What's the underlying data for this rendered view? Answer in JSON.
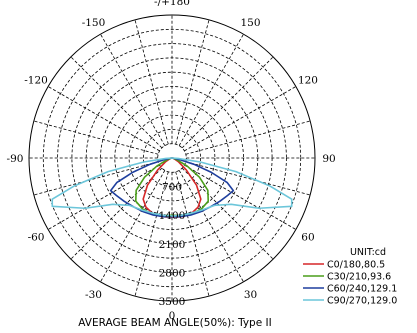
{
  "chart_data": {
    "type": "polar",
    "angle_labels": [
      "0",
      "30",
      "60",
      "90",
      "120",
      "150",
      "-/+180",
      "-150",
      "-120",
      "-90",
      "-60",
      "-30"
    ],
    "angle_values": [
      0,
      30,
      60,
      90,
      120,
      150,
      180,
      -150,
      -120,
      -90,
      -60,
      -30
    ],
    "radial_ticks": [
      700,
      1400,
      2100,
      2800,
      3500
    ],
    "radial_tick_labels": [
      "700",
      "1400",
      "2100",
      "2800",
      "3500"
    ],
    "rmax": 3500,
    "unit": "UNIT:cd",
    "caption": "AVERAGE BEAM ANGLE(50%): Type II",
    "legend_position": "bottom-right",
    "series": [
      {
        "name": "C0/180,80.5",
        "color": "#d62728",
        "points": [
          [
            -90,
            0
          ],
          [
            -80,
            20
          ],
          [
            -70,
            60
          ],
          [
            -60,
            180
          ],
          [
            -50,
            460
          ],
          [
            -42,
            900
          ],
          [
            -35,
            1230
          ],
          [
            -28,
            1360
          ],
          [
            -20,
            1430
          ],
          [
            -10,
            1460
          ],
          [
            0,
            1450
          ],
          [
            10,
            1460
          ],
          [
            20,
            1430
          ],
          [
            28,
            1360
          ],
          [
            35,
            1230
          ],
          [
            42,
            900
          ],
          [
            50,
            460
          ],
          [
            60,
            180
          ],
          [
            70,
            60
          ],
          [
            80,
            20
          ],
          [
            90,
            0
          ]
        ]
      },
      {
        "name": "C30/210,93.6",
        "color": "#4a9e1a",
        "points": [
          [
            -90,
            0
          ],
          [
            -80,
            30
          ],
          [
            -70,
            130
          ],
          [
            -62,
            420
          ],
          [
            -55,
            820
          ],
          [
            -48,
            1180
          ],
          [
            -40,
            1380
          ],
          [
            -30,
            1440
          ],
          [
            -20,
            1450
          ],
          [
            -10,
            1440
          ],
          [
            0,
            1400
          ],
          [
            10,
            1440
          ],
          [
            20,
            1450
          ],
          [
            30,
            1440
          ],
          [
            40,
            1380
          ],
          [
            48,
            1180
          ],
          [
            55,
            820
          ],
          [
            62,
            420
          ],
          [
            70,
            130
          ],
          [
            80,
            30
          ],
          [
            90,
            0
          ]
        ]
      },
      {
        "name": "C60/240,129.1",
        "color": "#1f3f9e",
        "points": [
          [
            -90,
            0
          ],
          [
            -84,
            40
          ],
          [
            -78,
            200
          ],
          [
            -74,
            560
          ],
          [
            -70,
            1020
          ],
          [
            -66,
            1480
          ],
          [
            -62,
            1700
          ],
          [
            -56,
            1640
          ],
          [
            -48,
            1580
          ],
          [
            -38,
            1520
          ],
          [
            -28,
            1490
          ],
          [
            -18,
            1470
          ],
          [
            -8,
            1450
          ],
          [
            0,
            1440
          ],
          [
            8,
            1450
          ],
          [
            18,
            1470
          ],
          [
            28,
            1490
          ],
          [
            38,
            1520
          ],
          [
            48,
            1580
          ],
          [
            56,
            1640
          ],
          [
            62,
            1700
          ],
          [
            66,
            1480
          ],
          [
            70,
            1020
          ],
          [
            74,
            560
          ],
          [
            78,
            200
          ],
          [
            84,
            40
          ],
          [
            90,
            0
          ]
        ]
      },
      {
        "name": "C90/270,129.0",
        "color": "#6cc6da",
        "points": [
          [
            -90,
            0
          ],
          [
            -86,
            150
          ],
          [
            -82,
            700
          ],
          [
            -78,
            1600
          ],
          [
            -74,
            2500
          ],
          [
            -71,
            3100
          ],
          [
            -68,
            3160
          ],
          [
            -60,
            2460
          ],
          [
            -52,
            1840
          ],
          [
            -42,
            1560
          ],
          [
            -30,
            1470
          ],
          [
            -18,
            1430
          ],
          [
            -8,
            1420
          ],
          [
            0,
            1420
          ],
          [
            8,
            1420
          ],
          [
            18,
            1430
          ],
          [
            30,
            1470
          ],
          [
            42,
            1560
          ],
          [
            52,
            1840
          ],
          [
            60,
            2460
          ],
          [
            68,
            3160
          ],
          [
            71,
            3100
          ],
          [
            74,
            2500
          ],
          [
            78,
            1600
          ],
          [
            82,
            700
          ],
          [
            86,
            150
          ],
          [
            90,
            0
          ]
        ]
      }
    ]
  }
}
